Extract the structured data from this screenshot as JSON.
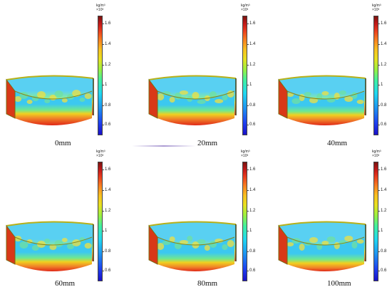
{
  "panels": [
    {
      "caption": "0mm"
    },
    {
      "caption": "20mm"
    },
    {
      "caption": "40mm"
    },
    {
      "caption": "60mm"
    },
    {
      "caption": "80mm"
    },
    {
      "caption": "100mm"
    }
  ],
  "colorbar": {
    "unit_line1": "kg/m³",
    "unit_line2": "×10³",
    "ticks": [
      "1.6",
      "1.4",
      "1.2",
      "1",
      "0.8",
      "0.6"
    ]
  },
  "colors": {
    "liquid_top": "#3cc8f0",
    "mix_zone": "#f0d020",
    "bottom": "#e02818",
    "wall": "#b8b018"
  }
}
